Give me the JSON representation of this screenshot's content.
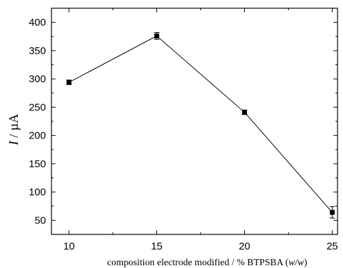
{
  "chart_data": {
    "type": "line",
    "xlabel": {
      "prefix": "composition electrode modified / % BTPSBA (",
      "italic": "w/w",
      "suffix": ")"
    },
    "ylabel": {
      "symbol": "I",
      "unit": " / µA"
    },
    "xlim": [
      9,
      25.3
    ],
    "ylim": [
      25,
      425
    ],
    "xticks": [
      10,
      15,
      20,
      25
    ],
    "yticks": [
      50,
      100,
      150,
      200,
      250,
      300,
      350,
      400
    ],
    "grid": false,
    "legend": "none",
    "series": [
      {
        "x": [
          10,
          15,
          20,
          25
        ],
        "y": [
          294,
          376,
          241,
          64
        ],
        "error": [
          4,
          6,
          4,
          10
        ]
      }
    ],
    "colors": {
      "line": "#000000",
      "marker": "#000000"
    }
  }
}
